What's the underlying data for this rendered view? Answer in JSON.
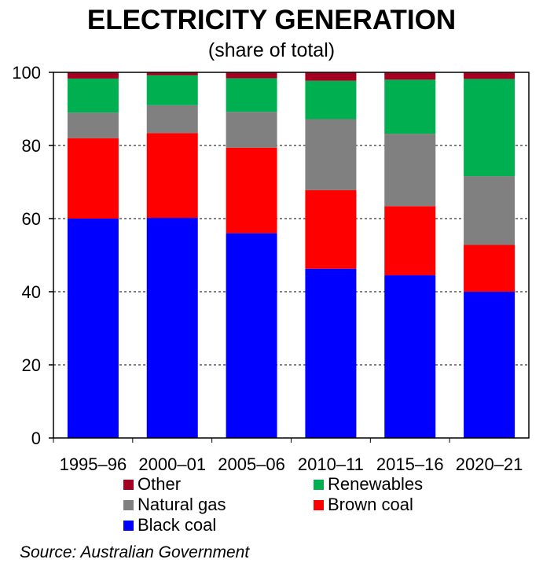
{
  "title": "ELECTRICITY GENERATION",
  "subtitle": "(share of total)",
  "source": "Source: Australian Government",
  "chart_data": {
    "type": "bar",
    "stacked": true,
    "categories": [
      "1995–96",
      "2000–01",
      "2005–06",
      "2010–11",
      "2015–16",
      "2020–21"
    ],
    "ylim": [
      0,
      100
    ],
    "yticks": [
      "0",
      "20",
      "40",
      "60",
      "80",
      "100"
    ],
    "grid": true,
    "legend_position": "bottom",
    "series": [
      {
        "name": "Black coal",
        "color": "#0000ff",
        "values": [
          60,
          60.2,
          56,
          46.3,
          44.5,
          40
        ]
      },
      {
        "name": "Brown coal",
        "color": "#ff0000",
        "values": [
          22,
          23.2,
          23.4,
          21.5,
          18.9,
          12.8
        ]
      },
      {
        "name": "Natural gas",
        "color": "#808080",
        "values": [
          7,
          7.6,
          9.8,
          19.4,
          19.8,
          18.8
        ]
      },
      {
        "name": "Renewables",
        "color": "#00b050",
        "values": [
          9.3,
          8.2,
          9.2,
          10.5,
          14.8,
          26.6
        ]
      },
      {
        "name": "Other",
        "color": "#a50021",
        "values": [
          1.7,
          0.8,
          1.6,
          2.3,
          2.0,
          1.8
        ]
      }
    ]
  }
}
